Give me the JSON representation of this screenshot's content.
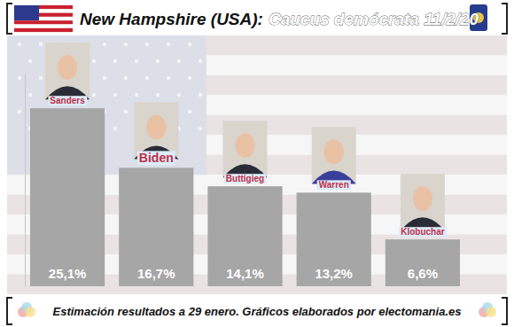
{
  "chart_data": {
    "type": "bar",
    "title": "New Hampshire (USA):",
    "subtitle": "Caucus demócrata 11/2/20",
    "annotations": [
      "Estimación resultados a 29 enero. Gráficos elaborados por electomania.es"
    ],
    "categories": [
      "Sanders",
      "Biden",
      "Buttigieg",
      "Warren",
      "Klobuchar"
    ],
    "values": [
      25.1,
      16.7,
      14.1,
      13.2,
      6.6
    ],
    "value_labels": [
      "25,1%",
      "16,7%",
      "14,1%",
      "13,2%",
      "6,6%"
    ],
    "color": "#a6a6a6",
    "ylim": [
      0,
      30
    ],
    "data_labels": true,
    "tick_labels": false,
    "grid": false
  }
}
